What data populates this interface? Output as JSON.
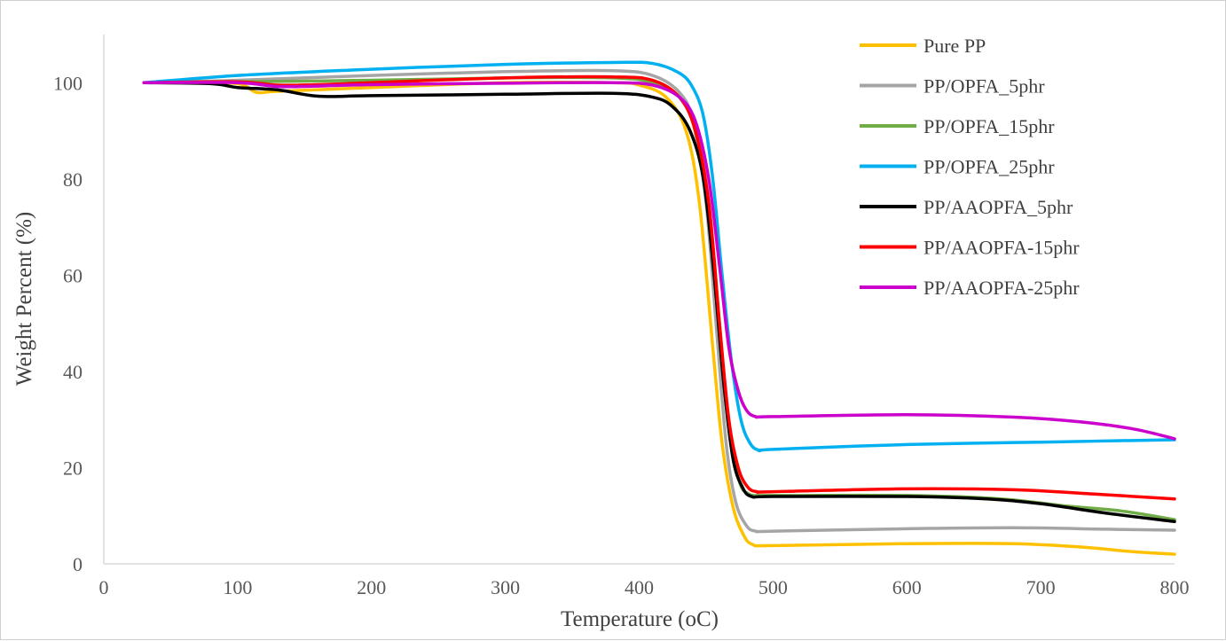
{
  "chart_data": {
    "type": "line",
    "title": "",
    "xlabel": "Temperature (oC)",
    "ylabel": "Weight Percent (%)",
    "xlim": [
      0,
      800
    ],
    "ylim": [
      0,
      110
    ],
    "xticks": [
      "0",
      "100",
      "200",
      "300",
      "400",
      "500",
      "600",
      "700",
      "800"
    ],
    "yticks": [
      "0",
      "20",
      "40",
      "60",
      "80",
      "100"
    ],
    "grid": false,
    "legend_position": "top-right",
    "series": [
      {
        "name": "Pure PP",
        "color": "#FFC000",
        "points": [
          [
            30,
            100
          ],
          [
            60,
            100
          ],
          [
            100,
            99.8
          ],
          [
            114,
            98
          ],
          [
            130,
            98.2
          ],
          [
            200,
            99
          ],
          [
            300,
            100
          ],
          [
            380,
            100
          ],
          [
            400,
            99.5
          ],
          [
            420,
            97
          ],
          [
            435,
            90
          ],
          [
            445,
            75
          ],
          [
            455,
            45
          ],
          [
            462,
            25
          ],
          [
            470,
            12
          ],
          [
            478,
            6
          ],
          [
            485,
            4
          ],
          [
            500,
            3.8
          ],
          [
            600,
            4.2
          ],
          [
            680,
            4.2
          ],
          [
            730,
            3.5
          ],
          [
            770,
            2.5
          ],
          [
            800,
            2
          ]
        ]
      },
      {
        "name": "PP/OPFA_5phr",
        "color": "#A5A5A5",
        "points": [
          [
            30,
            100
          ],
          [
            100,
            100.5
          ],
          [
            200,
            101.5
          ],
          [
            300,
            102.3
          ],
          [
            380,
            102.5
          ],
          [
            410,
            101.5
          ],
          [
            430,
            98
          ],
          [
            440,
            92
          ],
          [
            450,
            75
          ],
          [
            458,
            48
          ],
          [
            465,
            25
          ],
          [
            472,
            13
          ],
          [
            480,
            8
          ],
          [
            487,
            6.8
          ],
          [
            500,
            6.8
          ],
          [
            600,
            7.3
          ],
          [
            680,
            7.5
          ],
          [
            750,
            7.2
          ],
          [
            800,
            7
          ]
        ]
      },
      {
        "name": "PP/OPFA_15phr",
        "color": "#70AD47",
        "points": [
          [
            30,
            100
          ],
          [
            100,
            100.2
          ],
          [
            200,
            100.5
          ],
          [
            300,
            101
          ],
          [
            380,
            101
          ],
          [
            410,
            100
          ],
          [
            430,
            97
          ],
          [
            442,
            90
          ],
          [
            452,
            75
          ],
          [
            460,
            50
          ],
          [
            467,
            28
          ],
          [
            475,
            17
          ],
          [
            482,
            14.5
          ],
          [
            490,
            14.2
          ],
          [
            500,
            14.2
          ],
          [
            600,
            14.2
          ],
          [
            670,
            13.5
          ],
          [
            720,
            12
          ],
          [
            760,
            11
          ],
          [
            800,
            9.2
          ]
        ]
      },
      {
        "name": "PP/OPFA_25phr",
        "color": "#00B0F0",
        "points": [
          [
            30,
            100
          ],
          [
            100,
            101.5
          ],
          [
            200,
            102.8
          ],
          [
            300,
            103.8
          ],
          [
            380,
            104.2
          ],
          [
            410,
            104
          ],
          [
            430,
            102
          ],
          [
            440,
            99
          ],
          [
            448,
            93
          ],
          [
            455,
            80
          ],
          [
            462,
            60
          ],
          [
            469,
            42
          ],
          [
            476,
            30
          ],
          [
            483,
            25
          ],
          [
            490,
            23.6
          ],
          [
            500,
            23.8
          ],
          [
            600,
            24.8
          ],
          [
            700,
            25.3
          ],
          [
            800,
            25.8
          ]
        ]
      },
      {
        "name": "PP/AAOPFA_5phr",
        "color": "#000000",
        "points": [
          [
            30,
            100
          ],
          [
            80,
            99.8
          ],
          [
            100,
            99
          ],
          [
            130,
            98.5
          ],
          [
            160,
            97.2
          ],
          [
            200,
            97.3
          ],
          [
            300,
            97.6
          ],
          [
            380,
            97.8
          ],
          [
            410,
            97
          ],
          [
            425,
            95
          ],
          [
            438,
            90
          ],
          [
            448,
            80
          ],
          [
            456,
            60
          ],
          [
            463,
            38
          ],
          [
            470,
            22
          ],
          [
            477,
            16
          ],
          [
            484,
            14
          ],
          [
            500,
            14
          ],
          [
            600,
            14
          ],
          [
            660,
            13.5
          ],
          [
            700,
            12.5
          ],
          [
            750,
            10.5
          ],
          [
            800,
            8.8
          ]
        ]
      },
      {
        "name": "PP/AAOPFA-15phr",
        "color": "#FF0000",
        "points": [
          [
            30,
            100
          ],
          [
            100,
            100.2
          ],
          [
            130,
            99.5
          ],
          [
            160,
            99.6
          ],
          [
            200,
            100
          ],
          [
            300,
            101
          ],
          [
            380,
            101.2
          ],
          [
            410,
            100.5
          ],
          [
            430,
            97
          ],
          [
            442,
            90
          ],
          [
            452,
            75
          ],
          [
            460,
            50
          ],
          [
            467,
            30
          ],
          [
            474,
            20
          ],
          [
            481,
            16
          ],
          [
            488,
            15
          ],
          [
            500,
            15
          ],
          [
            600,
            15.6
          ],
          [
            680,
            15.4
          ],
          [
            740,
            14.5
          ],
          [
            800,
            13.5
          ]
        ]
      },
      {
        "name": "PP/AAOPFA-25phr",
        "color": "#CC00CC",
        "points": [
          [
            30,
            100
          ],
          [
            100,
            100
          ],
          [
            130,
            99.2
          ],
          [
            160,
            99.3
          ],
          [
            200,
            99.6
          ],
          [
            300,
            99.9
          ],
          [
            380,
            100
          ],
          [
            410,
            99.5
          ],
          [
            430,
            97
          ],
          [
            442,
            92
          ],
          [
            452,
            80
          ],
          [
            460,
            62
          ],
          [
            467,
            45
          ],
          [
            474,
            36
          ],
          [
            480,
            32
          ],
          [
            487,
            30.6
          ],
          [
            500,
            30.6
          ],
          [
            600,
            31
          ],
          [
            680,
            30.5
          ],
          [
            730,
            29.5
          ],
          [
            770,
            28
          ],
          [
            800,
            26
          ]
        ]
      }
    ]
  }
}
